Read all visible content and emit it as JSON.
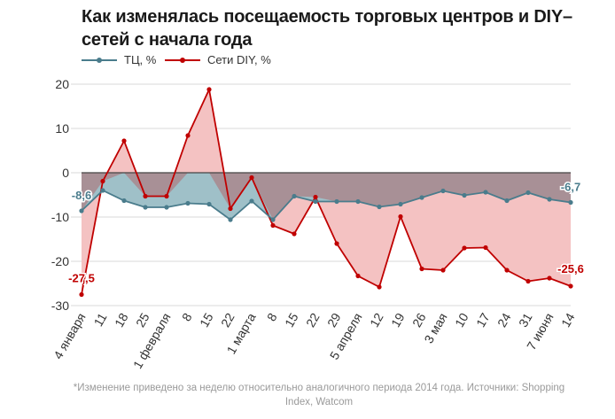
{
  "title": "Как изменялась посещаемость торговых центров и DIY–сетей с начала года",
  "footnote": "*Изменение приведено за неделю относительно аналогичного периода 2014 года. Источники: Shopping Index, Watcom",
  "colors": {
    "tc_line": "#4a7c8c",
    "tc_fill": "#9fc0c8",
    "diy_line": "#c00000",
    "diy_fill": "#f4c2c2",
    "overlap_fill": "#a89096"
  },
  "chart_data": {
    "type": "area",
    "title": "Как изменялась посещаемость торговых центров и DIY–сетей с начала года",
    "xlabel": "",
    "ylabel": "",
    "ylim": [
      -30,
      20
    ],
    "yticks": [
      20,
      10,
      0,
      -10,
      -20,
      -30
    ],
    "grid": true,
    "legend_position": "top-left",
    "categories": [
      "4 января",
      "11",
      "18",
      "25",
      "1 февраля",
      "8",
      "15",
      "22",
      "1 марта",
      "8",
      "15",
      "22",
      "29",
      "5 апреля",
      "12",
      "19",
      "26",
      "3 мая",
      "10",
      "17",
      "24",
      "31",
      "7 июня",
      "14"
    ],
    "series": [
      {
        "name": "ТЦ, %",
        "values": [
          -8.6,
          -4,
          -6.3,
          -7.8,
          -7.8,
          -6.9,
          -7.1,
          -10.6,
          -6.4,
          -10.6,
          -5.3,
          -6.5,
          -6.5,
          -6.5,
          -7.7,
          -7.1,
          -5.6,
          -4.1,
          -5.1,
          -4.4,
          -6.3,
          -4.5,
          -6,
          -6.7
        ]
      },
      {
        "name": "Сети DIY, %",
        "values": [
          -27.5,
          -1.9,
          7.2,
          -5.3,
          -5.3,
          8.4,
          18.8,
          -8.1,
          -1.1,
          -11.9,
          -13.8,
          -5.5,
          -16,
          -23.3,
          -25.8,
          -9.9,
          -21.7,
          -22,
          -17,
          -16.9,
          -22,
          -24.5,
          -23.8,
          -25.6
        ]
      }
    ],
    "annotations": [
      {
        "series": "ТЦ, %",
        "index": 0,
        "text": "-8,6"
      },
      {
        "series": "ТЦ, %",
        "index": 23,
        "text": "-6,7"
      },
      {
        "series": "Сети DIY, %",
        "index": 0,
        "text": "-27,5"
      },
      {
        "series": "Сети DIY, %",
        "index": 23,
        "text": "-25,6"
      }
    ]
  }
}
